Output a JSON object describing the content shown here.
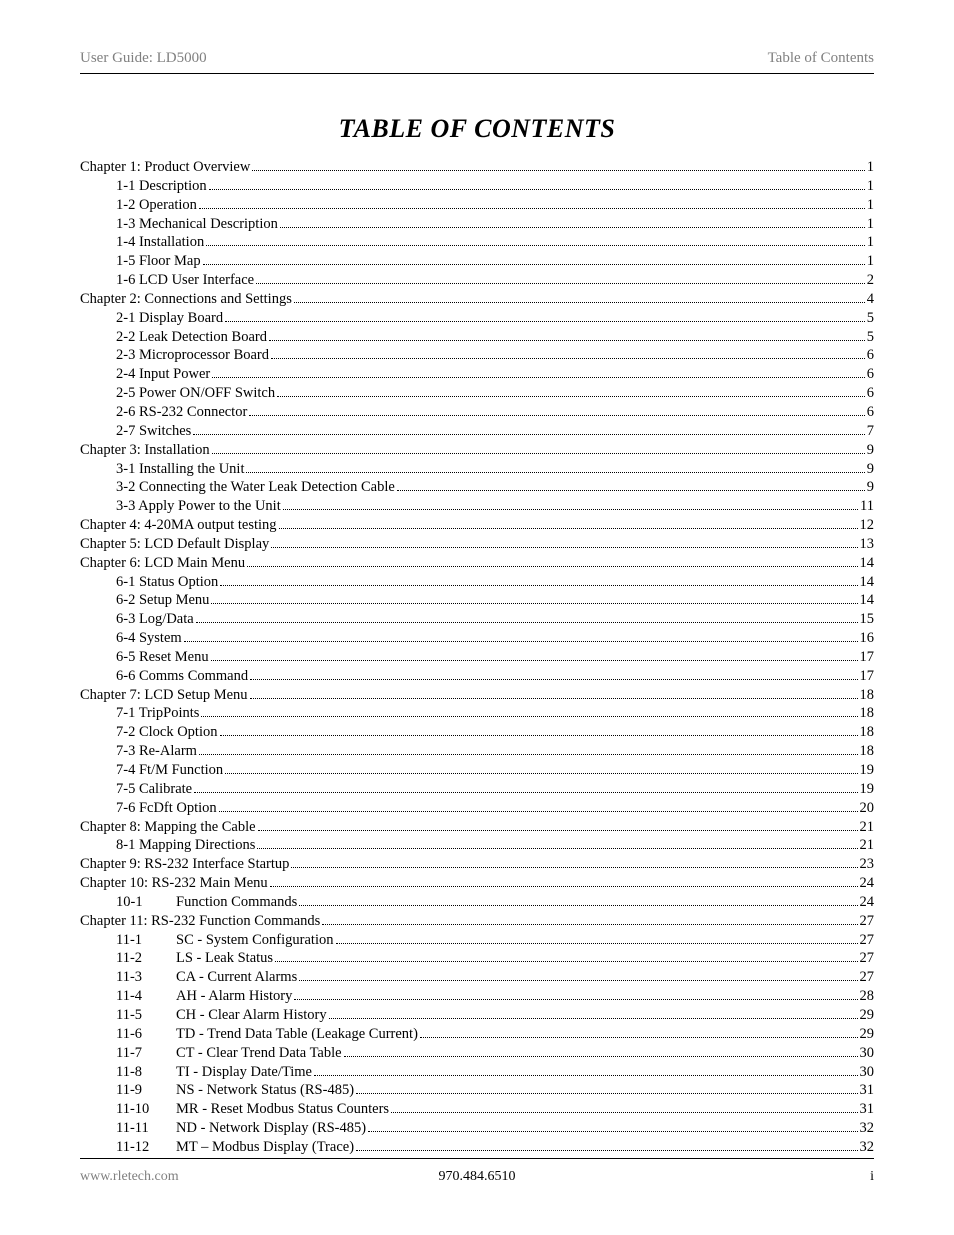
{
  "header": {
    "left": "User Guide: LD5000",
    "right": "Table of Contents"
  },
  "title": "TABLE OF CONTENTS",
  "toc": [
    {
      "level": 0,
      "label": "Chapter 1: Product Overview",
      "page": "1"
    },
    {
      "level": 1,
      "label": "1-1  Description",
      "page": "1"
    },
    {
      "level": 1,
      "label": "1-2  Operation",
      "page": "1"
    },
    {
      "level": 1,
      "label": "1-3  Mechanical Description",
      "page": "1"
    },
    {
      "level": 1,
      "label": "1-4  Installation",
      "page": "1"
    },
    {
      "level": 1,
      "label": "1-5  Floor Map",
      "page": "1"
    },
    {
      "level": 1,
      "label": "1-6  LCD User Interface",
      "page": "2"
    },
    {
      "level": 0,
      "label": "Chapter 2: Connections and Settings",
      "page": "4"
    },
    {
      "level": 1,
      "label": "2-1  Display Board",
      "page": "5"
    },
    {
      "level": 1,
      "label": "2-2  Leak Detection Board",
      "page": "5"
    },
    {
      "level": 1,
      "label": "2-3  Microprocessor Board",
      "page": "6"
    },
    {
      "level": 1,
      "label": "2-4  Input Power",
      "page": "6"
    },
    {
      "level": 1,
      "label": "2-5  Power ON/OFF Switch",
      "page": "6"
    },
    {
      "level": 1,
      "label": "2-6  RS-232 Connector",
      "page": "6"
    },
    {
      "level": 1,
      "label": "2-7  Switches",
      "page": "7"
    },
    {
      "level": 0,
      "label": "Chapter 3: Installation",
      "page": "9"
    },
    {
      "level": 1,
      "label": "3-1  Installing the Unit",
      "page": "9"
    },
    {
      "level": 1,
      "label": "3-2  Connecting the Water Leak Detection Cable",
      "page": "9"
    },
    {
      "level": 1,
      "label": "3-3  Apply Power to the Unit",
      "page": "11"
    },
    {
      "level": 0,
      "label": "Chapter 4: 4-20MA output testing",
      "page": "12"
    },
    {
      "level": 0,
      "label": "Chapter 5: LCD Default Display",
      "page": "13"
    },
    {
      "level": 0,
      "label": "Chapter 6: LCD Main Menu",
      "page": "14"
    },
    {
      "level": 1,
      "label": "6-1  Status Option",
      "page": "14"
    },
    {
      "level": 1,
      "label": "6-2  Setup Menu",
      "page": "14"
    },
    {
      "level": 1,
      "label": "6-3  Log/Data",
      "page": "15"
    },
    {
      "level": 1,
      "label": "6-4  System",
      "page": "16"
    },
    {
      "level": 1,
      "label": "6-5  Reset Menu",
      "page": "17"
    },
    {
      "level": 1,
      "label": "6-6  Comms Command",
      "page": "17"
    },
    {
      "level": 0,
      "label": "Chapter 7: LCD Setup Menu",
      "page": "18"
    },
    {
      "level": 1,
      "label": "7-1  TripPoints",
      "page": "18"
    },
    {
      "level": 1,
      "label": "7-2  Clock Option",
      "page": "18"
    },
    {
      "level": 1,
      "label": "7-3  Re-Alarm",
      "page": "18"
    },
    {
      "level": 1,
      "label": "7-4  Ft/M Function",
      "page": "19"
    },
    {
      "level": 1,
      "label": "7-5  Calibrate",
      "page": "19"
    },
    {
      "level": 1,
      "label": "7-6  FcDft Option",
      "page": "20"
    },
    {
      "level": 0,
      "label": "Chapter 8: Mapping the Cable",
      "page": "21"
    },
    {
      "level": 1,
      "label": "8-1  Mapping Directions",
      "page": "21"
    },
    {
      "level": 0,
      "label": "Chapter 9: RS-232 Interface Startup",
      "page": "23"
    },
    {
      "level": 0,
      "label": "Chapter 10: RS-232 Main Menu",
      "page": "24"
    },
    {
      "level": 2,
      "num": "10-1",
      "label": "Function Commands",
      "page": "24"
    },
    {
      "level": 0,
      "label": "Chapter 11: RS-232 Function Commands",
      "page": "27"
    },
    {
      "level": 2,
      "num": "11-1",
      "label": "SC - System Configuration",
      "page": "27"
    },
    {
      "level": 2,
      "num": "11-2",
      "label": "LS - Leak Status",
      "page": "27"
    },
    {
      "level": 2,
      "num": "11-3",
      "label": "CA - Current Alarms",
      "page": "27"
    },
    {
      "level": 2,
      "num": "11-4",
      "label": "AH - Alarm History",
      "page": "28"
    },
    {
      "level": 2,
      "num": "11-5",
      "label": "CH - Clear Alarm History",
      "page": "29"
    },
    {
      "level": 2,
      "num": "11-6",
      "label": "TD - Trend Data Table (Leakage Current)",
      "page": "29"
    },
    {
      "level": 2,
      "num": "11-7",
      "label": "CT - Clear Trend Data Table",
      "page": "30"
    },
    {
      "level": 2,
      "num": "11-8",
      "label": "TI - Display Date/Time",
      "page": "30"
    },
    {
      "level": 2,
      "num": "11-9",
      "label": "NS - Network Status (RS-485)",
      "page": "31"
    },
    {
      "level": 2,
      "num": "11-10",
      "label": "MR - Reset Modbus Status Counters",
      "page": "31"
    },
    {
      "level": 2,
      "num": "11-11",
      "label": "ND - Network Display (RS-485)",
      "page": "32"
    },
    {
      "level": 2,
      "num": "11-12",
      "label": "MT – Modbus Display (Trace)",
      "page": "32"
    }
  ],
  "footer": {
    "left": "www.rletech.com",
    "center": "970.484.6510",
    "right": "i"
  }
}
